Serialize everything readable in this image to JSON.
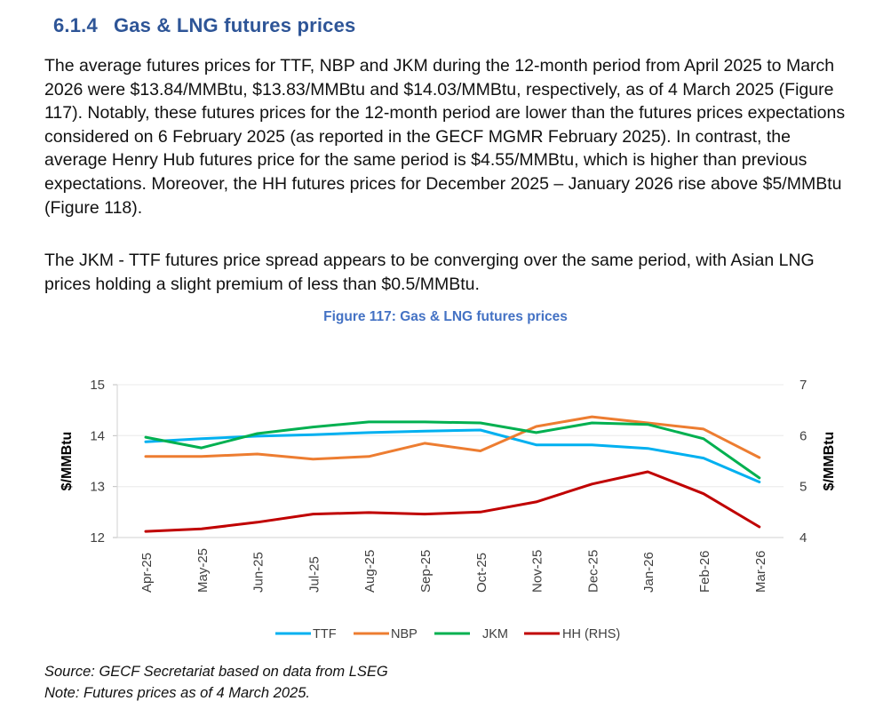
{
  "section": {
    "number": "6.1.4",
    "title": "Gas & LNG futures prices"
  },
  "paragraphs": [
    "The average futures prices for TTF, NBP and JKM during the 12-month period from April 2025 to March 2026 were $13.84/MMBtu, $13.83/MMBtu and $14.03/MMBtu, respectively, as of 4 March 2025 (Figure 117). Notably, these futures prices for the 12-month period are lower than the futures prices expectations considered on 6 February 2025 (as reported in the GECF MGMR February 2025). In contrast, the average Henry Hub futures price for the same period is $4.55/MMBtu, which is higher than previous expectations. Moreover, the HH futures prices for December 2025 – January 2026 rise above $5/MMBtu (Figure 118).",
    "The JKM - TTF futures price spread appears to be converging over the same period, with Asian LNG prices holding a slight premium of less than $0.5/MMBtu."
  ],
  "figure_title": "Figure 117: Gas & LNG futures prices",
  "chart_data": {
    "type": "line",
    "title": "Figure 117: Gas & LNG futures prices",
    "categories": [
      "Apr-25",
      "May-25",
      "Jun-25",
      "Jul-25",
      "Aug-25",
      "Sep-25",
      "Oct-25",
      "Nov-25",
      "Dec-25",
      "Jan-26",
      "Feb-26",
      "Mar-26"
    ],
    "ylabel": "$/MMBtu",
    "y2label": "$/MMBtu",
    "ylim": [
      12,
      15
    ],
    "y2lim": [
      4,
      7
    ],
    "yticks": [
      "12",
      "13",
      "14",
      "15"
    ],
    "y2ticks": [
      "4",
      "5",
      "6",
      "7"
    ],
    "grid": true,
    "legend": "bottom",
    "series": [
      {
        "name": "TTF",
        "axis": "left",
        "color": "#00b0f0",
        "values": [
          13.88,
          13.94,
          13.99,
          14.02,
          14.06,
          14.09,
          14.11,
          13.82,
          13.82,
          13.75,
          13.56,
          13.09
        ]
      },
      {
        "name": "NBP",
        "axis": "left",
        "color": "#ed7d31",
        "values": [
          13.59,
          13.59,
          13.64,
          13.54,
          13.59,
          13.85,
          13.7,
          14.18,
          14.37,
          14.25,
          14.13,
          13.57
        ]
      },
      {
        "name": "JKM",
        "axis": "left",
        "color": "#00b050",
        "values": [
          13.97,
          13.76,
          14.04,
          14.17,
          14.27,
          14.27,
          14.25,
          14.06,
          14.25,
          14.22,
          13.94,
          13.17
        ]
      },
      {
        "name": "HH (RHS)",
        "axis": "right",
        "color": "#c00000",
        "values": [
          4.12,
          4.17,
          4.3,
          4.46,
          4.49,
          4.46,
          4.5,
          4.7,
          5.05,
          5.29,
          4.86,
          4.21
        ]
      }
    ]
  },
  "notes": {
    "source": "Source: GECF Secretariat based on data from LSEG",
    "note": "Note: Futures prices as of 4 March 2025."
  }
}
